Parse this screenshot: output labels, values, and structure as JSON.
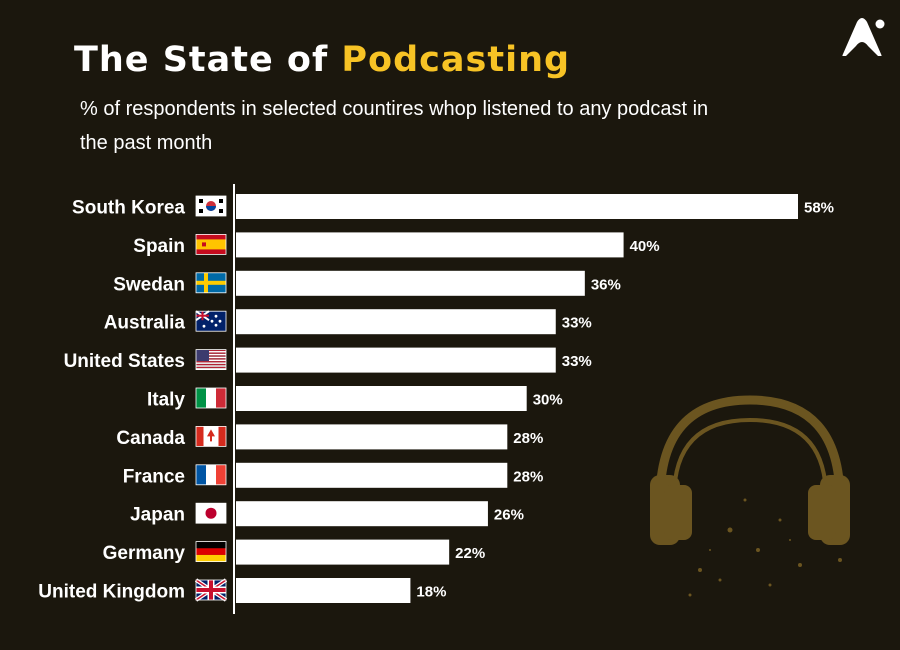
{
  "header": {
    "title_part1": "The State of ",
    "title_highlight": "Podcasting",
    "subtitle": "% of respondents in selected countires whop listened to any podcast in the past month"
  },
  "colors": {
    "background": "#1b170d",
    "bar": "#ffffff",
    "accent": "#f7c325",
    "headphones": "#6b5520"
  },
  "icons": {
    "logo": "brand-logo-icon",
    "decoration": "headphones-icon"
  },
  "chart_data": {
    "type": "bar",
    "orientation": "horizontal",
    "categories": [
      "South Korea",
      "Spain",
      "Swedan",
      "Australia",
      "United States",
      "Italy",
      "Canada",
      "France",
      "Japan",
      "Germany",
      "United Kingdom"
    ],
    "flags": [
      "kr",
      "es",
      "se",
      "au",
      "us",
      "it",
      "ca",
      "fr",
      "jp",
      "de",
      "gb"
    ],
    "values": [
      58,
      40,
      36,
      33,
      33,
      30,
      28,
      28,
      26,
      22,
      18
    ],
    "data_labels": [
      "58%",
      "40%",
      "36%",
      "33%",
      "33%",
      "30%",
      "28%",
      "28%",
      "26%",
      "22%",
      "18%"
    ],
    "unit": "%",
    "xlim": [
      0,
      58
    ],
    "grid": false,
    "legend": "none"
  }
}
